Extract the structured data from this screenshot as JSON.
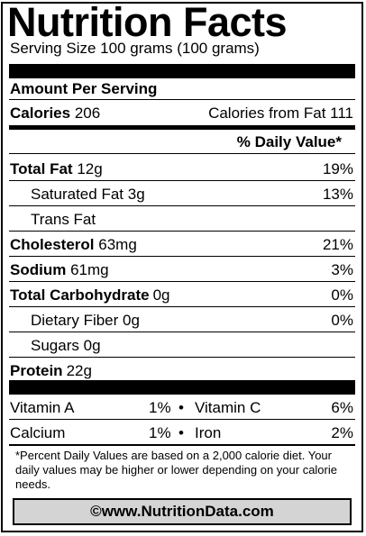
{
  "title": "Nutrition Facts",
  "serving_size": "Serving Size 100 grams (100 grams)",
  "amount_per_serving": "Amount Per Serving",
  "calories_label": "Calories",
  "calories_value": "206",
  "calories_from_fat": "Calories from Fat 111",
  "daily_value_header": "% Daily Value*",
  "nutrients": [
    {
      "label": "Total Fat",
      "amount": "12g",
      "dv": "19%"
    },
    {
      "label": "Saturated Fat",
      "amount": "3g",
      "dv": "13%"
    },
    {
      "label": "Trans Fat",
      "amount": "",
      "dv": ""
    },
    {
      "label": "Cholesterol",
      "amount": "63mg",
      "dv": "21%"
    },
    {
      "label": "Sodium",
      "amount": "61mg",
      "dv": "3%"
    },
    {
      "label": "Total Carbohydrate",
      "amount": "0g",
      "dv": "0%"
    },
    {
      "label": "Dietary Fiber",
      "amount": "0g",
      "dv": "0%"
    },
    {
      "label": "Sugars",
      "amount": "0g",
      "dv": ""
    },
    {
      "label": "Protein",
      "amount": "22g",
      "dv": ""
    }
  ],
  "vitamins": [
    {
      "left_label": "Vitamin A",
      "left_dv": "1%",
      "bullet": "•",
      "right_label": "Vitamin C",
      "right_dv": "6%"
    },
    {
      "left_label": "Calcium",
      "left_dv": "1%",
      "bullet": "•",
      "right_label": "Iron",
      "right_dv": "2%"
    }
  ],
  "footnote": "*Percent Daily Values are based on a 2,000 calorie diet. Your daily values may be higher or lower depending on your calorie needs.",
  "source": "©www.NutritionData.com"
}
